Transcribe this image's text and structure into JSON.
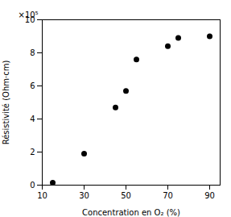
{
  "chart_data": {
    "type": "scatter",
    "x": [
      15,
      30,
      45,
      50,
      55,
      70,
      75,
      90
    ],
    "values": [
      0.15,
      1.9,
      4.7,
      5.7,
      7.6,
      8.4,
      8.9,
      9.0
    ],
    "xlabel": "Concentration en O₂ (%)",
    "ylabel": "Résistivité (Ohm·cm)",
    "annotations": [
      "×10⁵"
    ],
    "xlim": [
      10,
      95
    ],
    "ylim": [
      0,
      10
    ],
    "xticks": [
      10,
      30,
      50,
      70,
      90
    ],
    "yticks": [
      0,
      2,
      4,
      6,
      8,
      10
    ],
    "color": "black",
    "marker": "circle",
    "grid": false
  }
}
